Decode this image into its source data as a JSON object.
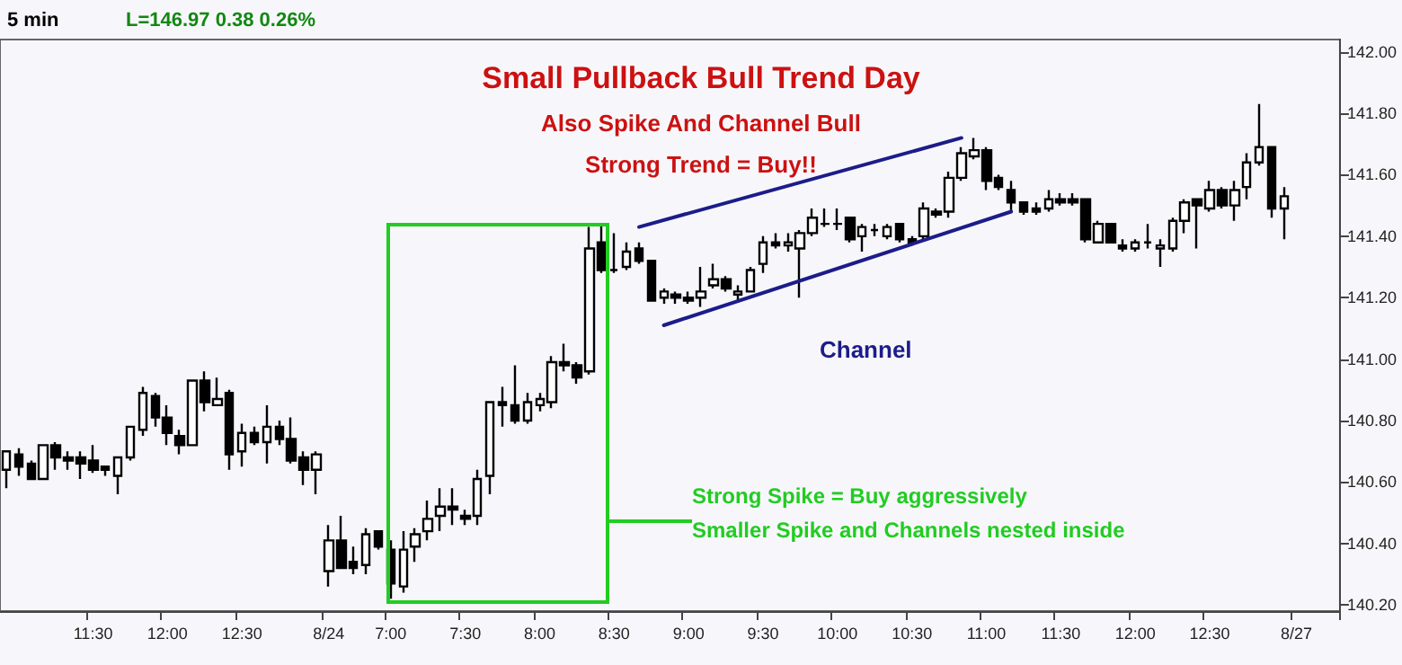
{
  "chart_data": {
    "type": "candlestick",
    "title": "Small Pullback Bull Trend Day",
    "subtitle": "Also Spike And Channel Bull",
    "annotations": [
      "Strong Trend = Buy!!",
      "Channel",
      "Strong Spike = Buy aggressively",
      "Smaller Spike and Channels nested inside",
      "5 min",
      "L=146.97 0.38 0.26%"
    ],
    "categories": [
      null,
      null,
      null,
      null,
      null,
      null,
      null,
      "11:30",
      null,
      null,
      null,
      null,
      null,
      "12:00",
      null,
      null,
      null,
      null,
      null,
      "12:30",
      null,
      null,
      null,
      null,
      null,
      null,
      "8/24",
      null,
      null,
      null,
      null,
      "7:00",
      null,
      null,
      null,
      null,
      null,
      "7:30",
      null,
      null,
      null,
      null,
      null,
      "8:00",
      null,
      null,
      null,
      null,
      null,
      "8:30",
      null,
      null,
      null,
      null,
      null,
      "9:00",
      null,
      null,
      null,
      null,
      null,
      "9:30",
      null,
      null,
      null,
      null,
      null,
      "10:00",
      null,
      null,
      null,
      null,
      null,
      "10:30",
      null,
      null,
      null,
      null,
      null,
      "11:00",
      null,
      null,
      null,
      null,
      null,
      "11:30",
      null,
      null,
      null,
      null,
      null,
      "12:00",
      null,
      null,
      null,
      null,
      null,
      "12:30",
      null,
      null,
      null,
      null,
      null,
      null,
      "8/27",
      null,
      null,
      null
    ],
    "ohlc": [
      [
        140.64,
        140.7,
        140.58,
        140.7
      ],
      [
        140.69,
        140.71,
        140.62,
        140.65
      ],
      [
        140.66,
        140.67,
        140.61,
        140.61
      ],
      [
        140.61,
        140.72,
        140.61,
        140.72
      ],
      [
        140.72,
        140.73,
        140.64,
        140.68
      ],
      [
        140.68,
        140.7,
        140.64,
        140.67
      ],
      [
        140.68,
        140.7,
        140.61,
        140.66
      ],
      [
        140.67,
        140.72,
        140.63,
        140.64
      ],
      [
        140.65,
        140.65,
        140.62,
        140.64
      ],
      [
        140.62,
        140.68,
        140.56,
        140.68
      ],
      [
        140.68,
        140.78,
        140.67,
        140.78
      ],
      [
        140.77,
        140.91,
        140.75,
        140.89
      ],
      [
        140.88,
        140.89,
        140.78,
        140.81
      ],
      [
        140.81,
        140.85,
        140.72,
        140.76
      ],
      [
        140.75,
        140.77,
        140.69,
        140.72
      ],
      [
        140.72,
        140.93,
        140.72,
        140.93
      ],
      [
        140.93,
        140.96,
        140.83,
        140.86
      ],
      [
        140.85,
        140.94,
        140.85,
        140.87
      ],
      [
        140.89,
        140.9,
        140.64,
        140.69
      ],
      [
        140.7,
        140.79,
        140.65,
        140.76
      ],
      [
        140.76,
        140.78,
        140.72,
        140.73
      ],
      [
        140.73,
        140.85,
        140.66,
        140.78
      ],
      [
        140.78,
        140.8,
        140.72,
        140.74
      ],
      [
        140.74,
        140.81,
        140.66,
        140.67
      ],
      [
        140.68,
        140.7,
        140.59,
        140.64
      ],
      [
        140.64,
        140.7,
        140.56,
        140.69
      ],
      [
        140.31,
        140.46,
        140.26,
        140.41
      ],
      [
        140.41,
        140.49,
        140.32,
        140.32
      ],
      [
        140.34,
        140.39,
        140.3,
        140.32
      ],
      [
        140.33,
        140.45,
        140.3,
        140.43
      ],
      [
        140.44,
        140.44,
        140.38,
        140.39
      ],
      [
        140.38,
        140.41,
        140.22,
        140.27
      ],
      [
        140.26,
        140.44,
        140.24,
        140.38
      ],
      [
        140.39,
        140.45,
        140.34,
        140.43
      ],
      [
        140.44,
        140.54,
        140.41,
        140.48
      ],
      [
        140.49,
        140.58,
        140.44,
        140.52
      ],
      [
        140.52,
        140.58,
        140.46,
        140.51
      ],
      [
        140.49,
        140.51,
        140.46,
        140.48
      ],
      [
        140.49,
        140.64,
        140.46,
        140.61
      ],
      [
        140.62,
        140.86,
        140.56,
        140.86
      ],
      [
        140.86,
        140.91,
        140.78,
        140.85
      ],
      [
        140.85,
        140.98,
        140.79,
        140.8
      ],
      [
        140.8,
        140.89,
        140.79,
        140.86
      ],
      [
        140.85,
        140.89,
        140.83,
        140.87
      ],
      [
        140.86,
        141.01,
        140.84,
        140.99
      ],
      [
        140.99,
        141.05,
        140.96,
        140.98
      ],
      [
        140.98,
        140.99,
        140.92,
        140.94
      ],
      [
        140.96,
        141.43,
        140.95,
        141.36
      ],
      [
        141.38,
        141.44,
        141.28,
        141.29
      ],
      [
        141.29,
        141.41,
        141.28,
        141.29
      ],
      [
        141.3,
        141.38,
        141.29,
        141.35
      ],
      [
        141.36,
        141.38,
        141.31,
        141.32
      ],
      [
        141.32,
        141.32,
        141.19,
        141.19
      ],
      [
        141.2,
        141.23,
        141.18,
        141.22
      ],
      [
        141.21,
        141.22,
        141.18,
        141.2
      ],
      [
        141.2,
        141.22,
        141.18,
        141.19
      ],
      [
        141.2,
        141.3,
        141.17,
        141.22
      ],
      [
        141.24,
        141.31,
        141.23,
        141.26
      ],
      [
        141.26,
        141.27,
        141.22,
        141.23
      ],
      [
        141.21,
        141.24,
        141.19,
        141.22
      ],
      [
        141.22,
        141.3,
        141.22,
        141.29
      ],
      [
        141.31,
        141.4,
        141.28,
        141.38
      ],
      [
        141.38,
        141.41,
        141.36,
        141.37
      ],
      [
        141.37,
        141.41,
        141.35,
        141.38
      ],
      [
        141.36,
        141.42,
        141.2,
        141.41
      ],
      [
        141.41,
        141.49,
        141.4,
        141.46
      ],
      [
        141.44,
        141.49,
        141.43,
        141.44
      ],
      [
        141.44,
        141.49,
        141.42,
        141.44
      ],
      [
        141.46,
        141.46,
        141.38,
        141.39
      ],
      [
        141.4,
        141.44,
        141.35,
        141.43
      ],
      [
        141.42,
        141.44,
        141.4,
        141.42
      ],
      [
        141.4,
        141.44,
        141.39,
        141.43
      ],
      [
        141.44,
        141.44,
        141.38,
        141.39
      ],
      [
        141.39,
        141.4,
        141.37,
        141.38
      ],
      [
        141.4,
        141.51,
        141.39,
        141.49
      ],
      [
        141.48,
        141.49,
        141.46,
        141.47
      ],
      [
        141.48,
        141.61,
        141.46,
        141.59
      ],
      [
        141.59,
        141.69,
        141.58,
        141.67
      ],
      [
        141.66,
        141.72,
        141.65,
        141.68
      ],
      [
        141.68,
        141.69,
        141.55,
        141.58
      ],
      [
        141.59,
        141.6,
        141.55,
        141.56
      ],
      [
        141.55,
        141.58,
        141.48,
        141.51
      ],
      [
        141.51,
        141.51,
        141.47,
        141.48
      ],
      [
        141.49,
        141.51,
        141.47,
        141.48
      ],
      [
        141.49,
        141.55,
        141.48,
        141.52
      ],
      [
        141.52,
        141.54,
        141.5,
        141.51
      ],
      [
        141.52,
        141.54,
        141.5,
        141.51
      ],
      [
        141.52,
        141.52,
        141.38,
        141.39
      ],
      [
        141.38,
        141.45,
        141.38,
        141.44
      ],
      [
        141.44,
        141.44,
        141.38,
        141.38
      ],
      [
        141.37,
        141.39,
        141.35,
        141.36
      ],
      [
        141.36,
        141.39,
        141.35,
        141.38
      ],
      [
        141.38,
        141.44,
        141.36,
        141.38
      ],
      [
        141.36,
        141.39,
        141.3,
        141.37
      ],
      [
        141.36,
        141.46,
        141.35,
        141.45
      ],
      [
        141.45,
        141.52,
        141.41,
        141.51
      ],
      [
        141.52,
        141.52,
        141.36,
        141.5
      ],
      [
        141.49,
        141.58,
        141.48,
        141.55
      ],
      [
        141.55,
        141.56,
        141.49,
        141.5
      ],
      [
        141.5,
        141.58,
        141.45,
        141.55
      ],
      [
        141.56,
        141.67,
        141.52,
        141.64
      ],
      [
        141.64,
        141.83,
        141.63,
        141.69
      ],
      [
        141.69,
        141.69,
        141.46,
        141.49
      ],
      [
        141.49,
        141.56,
        141.39,
        141.53
      ],
      null,
      null,
      null,
      null
    ],
    "series": [
      {
        "type": "line",
        "color": "#1c1c8a",
        "values": [
          null,
          null,
          null,
          null,
          null,
          null,
          null,
          null,
          null,
          null,
          null,
          null,
          null,
          null,
          null,
          null,
          null,
          null,
          null,
          null,
          null,
          null,
          null,
          null,
          null,
          null,
          null,
          null,
          null,
          null,
          null,
          null,
          null,
          null,
          null,
          null,
          null,
          null,
          null,
          null,
          null,
          null,
          null,
          null,
          null,
          null,
          null,
          null,
          null,
          null,
          null,
          141.43,
          null,
          null,
          null,
          null,
          null,
          null,
          null,
          null,
          null,
          null,
          null,
          null,
          null,
          null,
          null,
          null,
          null,
          null,
          null,
          null,
          null,
          null,
          null,
          null,
          null,
          141.72,
          null,
          null,
          null,
          null,
          null,
          null,
          null,
          null,
          null,
          null,
          null,
          null,
          null,
          null,
          null,
          null,
          null,
          null,
          null,
          null,
          null,
          null,
          null,
          null,
          null,
          null,
          null,
          null,
          null,
          null
        ]
      },
      {
        "type": "line",
        "color": "#1c1c8a",
        "values": [
          null,
          null,
          null,
          null,
          null,
          null,
          null,
          null,
          null,
          null,
          null,
          null,
          null,
          null,
          null,
          null,
          null,
          null,
          null,
          null,
          null,
          null,
          null,
          null,
          null,
          null,
          null,
          null,
          null,
          null,
          null,
          null,
          null,
          null,
          null,
          null,
          null,
          null,
          null,
          null,
          null,
          null,
          null,
          null,
          null,
          null,
          null,
          null,
          null,
          null,
          null,
          null,
          null,
          141.11,
          null,
          null,
          null,
          null,
          null,
          null,
          null,
          null,
          null,
          null,
          null,
          null,
          null,
          null,
          null,
          null,
          null,
          null,
          null,
          null,
          null,
          null,
          null,
          null,
          null,
          null,
          null,
          141.48,
          null,
          null,
          null,
          null,
          null,
          null,
          null,
          null,
          null,
          null,
          null,
          null,
          null,
          null,
          null,
          null,
          null,
          null,
          null,
          null,
          null,
          null,
          null,
          null,
          null,
          null
        ]
      }
    ],
    "ylim": [
      140.18,
      142.04
    ],
    "yticks": [
      {
        "value": 140.2,
        "label": "140.20"
      },
      {
        "value": 140.4,
        "label": "140.40"
      },
      {
        "value": 140.6,
        "label": "140.60"
      },
      {
        "value": 140.8,
        "label": "140.80"
      },
      {
        "value": 141,
        "label": "141.00"
      },
      {
        "value": 141.2,
        "label": "141.20"
      },
      {
        "value": 141.4,
        "label": "141.40"
      },
      {
        "value": 141.6,
        "label": "141.60"
      },
      {
        "value": 141.8,
        "label": "141.80"
      },
      {
        "value": 142,
        "label": "142.00"
      }
    ]
  }
}
